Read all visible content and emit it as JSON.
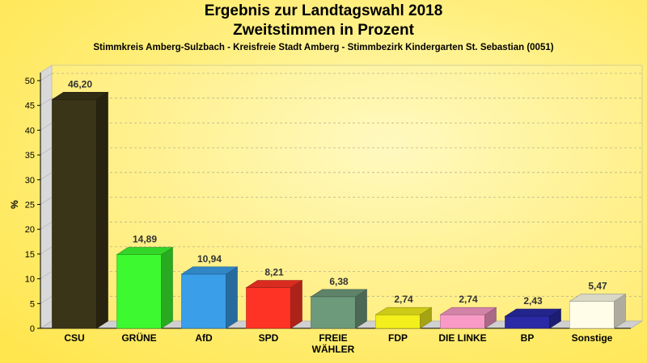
{
  "header": {
    "title_line1": "Ergebnis zur Landtagswahl 2018",
    "title_line2": "Zweitstimmen in Prozent",
    "subtitle": "Stimmkreis Amberg-Sulzbach - Kreisfreie Stadt Amberg - Stimmbezirk Kindergarten St. Sebastian (0051)"
  },
  "chart_data": {
    "type": "bar",
    "title": "Ergebnis zur Landtagswahl 2018 Zweitstimmen in Prozent",
    "subtitle": "Stimmkreis Amberg-Sulzbach - Kreisfreie Stadt Amberg - Stimmbezirk Kindergarten St. Sebastian (0051)",
    "ylabel": "%",
    "xlabel": "",
    "ylim": [
      0,
      50
    ],
    "yticks": [
      0,
      5,
      10,
      15,
      20,
      25,
      30,
      35,
      40,
      45,
      50
    ],
    "grid": true,
    "categories": [
      "CSU",
      "GRÜNE",
      "AfD",
      "SPD",
      "FREIE WÄHLER",
      "FDP",
      "DIE LINKE",
      "BP",
      "Sonstige"
    ],
    "category_lines": [
      [
        "CSU"
      ],
      [
        "GRÜNE"
      ],
      [
        "AfD"
      ],
      [
        "SPD"
      ],
      [
        "FREIE",
        "WÄHLER"
      ],
      [
        "FDP"
      ],
      [
        "DIE LINKE"
      ],
      [
        "BP"
      ],
      [
        "Sonstige"
      ]
    ],
    "values": [
      46.2,
      14.89,
      10.94,
      8.21,
      6.38,
      2.74,
      2.74,
      2.43,
      5.47
    ],
    "value_labels": [
      "46,20",
      "14,89",
      "10,94",
      "8,21",
      "6,38",
      "2,74",
      "2,74",
      "2,43",
      "5,47"
    ],
    "colors": [
      "#3a3418",
      "#3dfa30",
      "#3a9ee8",
      "#ff3325",
      "#6e9a7c",
      "#f2ef1c",
      "#f99ac6",
      "#2a2aa6",
      "#fffde8"
    ]
  }
}
